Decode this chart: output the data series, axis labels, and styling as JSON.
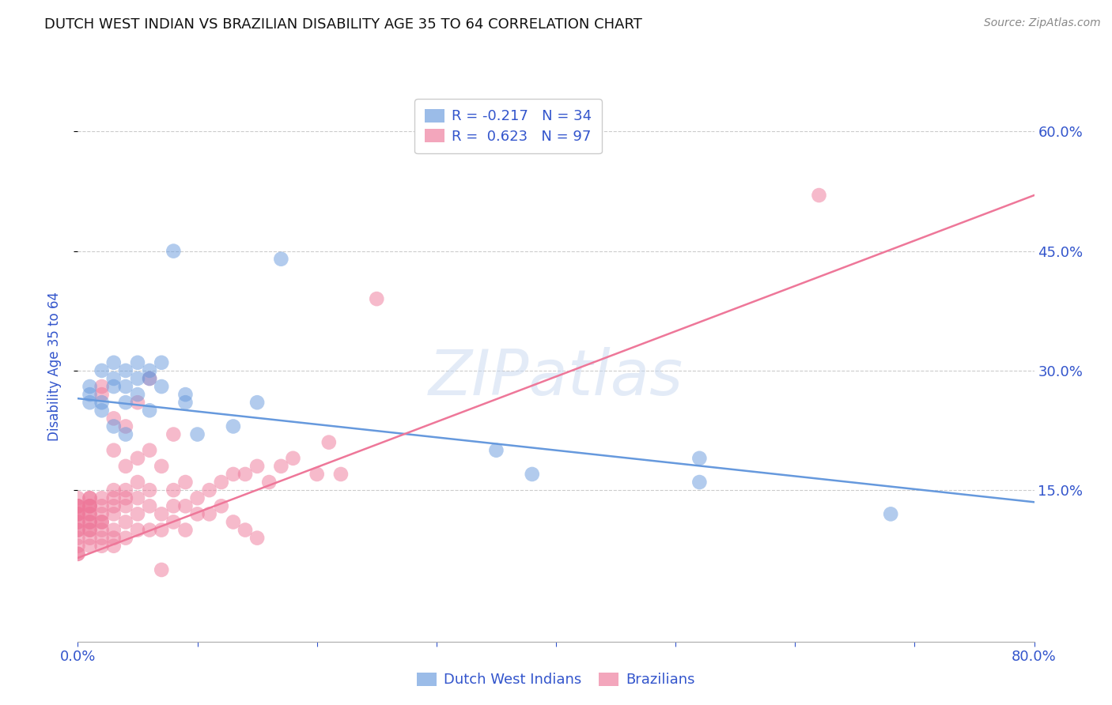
{
  "title": "DUTCH WEST INDIAN VS BRAZILIAN DISABILITY AGE 35 TO 64 CORRELATION CHART",
  "source": "Source: ZipAtlas.com",
  "ylabel": "Disability Age 35 to 64",
  "legend_labels": [
    "Dutch West Indians",
    "Brazilians"
  ],
  "xmin": 0.0,
  "xmax": 0.8,
  "ymin": -0.04,
  "ymax": 0.65,
  "yticks": [
    0.15,
    0.3,
    0.45,
    0.6
  ],
  "xtick_positions": [
    0.0,
    0.1,
    0.2,
    0.3,
    0.4,
    0.5,
    0.6,
    0.7,
    0.8
  ],
  "xtick_labels": [
    "0.0%",
    "",
    "",
    "",
    "",
    "",
    "",
    "",
    "80.0%"
  ],
  "blue_color": "#6699DD",
  "pink_color": "#EE7799",
  "watermark": "ZIPatlas",
  "blue_scatter": [
    [
      0.01,
      0.27
    ],
    [
      0.01,
      0.28
    ],
    [
      0.01,
      0.26
    ],
    [
      0.02,
      0.3
    ],
    [
      0.02,
      0.26
    ],
    [
      0.02,
      0.25
    ],
    [
      0.03,
      0.29
    ],
    [
      0.03,
      0.31
    ],
    [
      0.03,
      0.23
    ],
    [
      0.03,
      0.28
    ],
    [
      0.04,
      0.3
    ],
    [
      0.04,
      0.28
    ],
    [
      0.04,
      0.26
    ],
    [
      0.04,
      0.22
    ],
    [
      0.05,
      0.31
    ],
    [
      0.05,
      0.29
    ],
    [
      0.05,
      0.27
    ],
    [
      0.06,
      0.3
    ],
    [
      0.06,
      0.29
    ],
    [
      0.06,
      0.25
    ],
    [
      0.07,
      0.31
    ],
    [
      0.07,
      0.28
    ],
    [
      0.08,
      0.45
    ],
    [
      0.09,
      0.27
    ],
    [
      0.09,
      0.26
    ],
    [
      0.1,
      0.22
    ],
    [
      0.13,
      0.23
    ],
    [
      0.15,
      0.26
    ],
    [
      0.17,
      0.44
    ],
    [
      0.35,
      0.2
    ],
    [
      0.38,
      0.17
    ],
    [
      0.52,
      0.19
    ],
    [
      0.52,
      0.16
    ],
    [
      0.68,
      0.12
    ]
  ],
  "pink_scatter": [
    [
      0.0,
      0.07
    ],
    [
      0.0,
      0.07
    ],
    [
      0.0,
      0.08
    ],
    [
      0.0,
      0.09
    ],
    [
      0.0,
      0.1
    ],
    [
      0.0,
      0.1
    ],
    [
      0.0,
      0.11
    ],
    [
      0.0,
      0.11
    ],
    [
      0.0,
      0.12
    ],
    [
      0.0,
      0.12
    ],
    [
      0.0,
      0.12
    ],
    [
      0.0,
      0.13
    ],
    [
      0.0,
      0.13
    ],
    [
      0.0,
      0.13
    ],
    [
      0.0,
      0.14
    ],
    [
      0.01,
      0.08
    ],
    [
      0.01,
      0.09
    ],
    [
      0.01,
      0.1
    ],
    [
      0.01,
      0.1
    ],
    [
      0.01,
      0.11
    ],
    [
      0.01,
      0.11
    ],
    [
      0.01,
      0.12
    ],
    [
      0.01,
      0.12
    ],
    [
      0.01,
      0.13
    ],
    [
      0.01,
      0.13
    ],
    [
      0.01,
      0.13
    ],
    [
      0.01,
      0.14
    ],
    [
      0.01,
      0.14
    ],
    [
      0.02,
      0.08
    ],
    [
      0.02,
      0.09
    ],
    [
      0.02,
      0.1
    ],
    [
      0.02,
      0.11
    ],
    [
      0.02,
      0.11
    ],
    [
      0.02,
      0.12
    ],
    [
      0.02,
      0.13
    ],
    [
      0.02,
      0.14
    ],
    [
      0.02,
      0.27
    ],
    [
      0.02,
      0.28
    ],
    [
      0.03,
      0.08
    ],
    [
      0.03,
      0.09
    ],
    [
      0.03,
      0.1
    ],
    [
      0.03,
      0.12
    ],
    [
      0.03,
      0.13
    ],
    [
      0.03,
      0.14
    ],
    [
      0.03,
      0.15
    ],
    [
      0.03,
      0.2
    ],
    [
      0.03,
      0.24
    ],
    [
      0.04,
      0.09
    ],
    [
      0.04,
      0.11
    ],
    [
      0.04,
      0.13
    ],
    [
      0.04,
      0.14
    ],
    [
      0.04,
      0.15
    ],
    [
      0.04,
      0.18
    ],
    [
      0.04,
      0.23
    ],
    [
      0.05,
      0.1
    ],
    [
      0.05,
      0.12
    ],
    [
      0.05,
      0.14
    ],
    [
      0.05,
      0.16
    ],
    [
      0.05,
      0.19
    ],
    [
      0.05,
      0.26
    ],
    [
      0.06,
      0.1
    ],
    [
      0.06,
      0.13
    ],
    [
      0.06,
      0.15
    ],
    [
      0.06,
      0.2
    ],
    [
      0.06,
      0.29
    ],
    [
      0.07,
      0.05
    ],
    [
      0.07,
      0.1
    ],
    [
      0.07,
      0.12
    ],
    [
      0.07,
      0.18
    ],
    [
      0.08,
      0.11
    ],
    [
      0.08,
      0.13
    ],
    [
      0.08,
      0.15
    ],
    [
      0.08,
      0.22
    ],
    [
      0.09,
      0.1
    ],
    [
      0.09,
      0.13
    ],
    [
      0.09,
      0.16
    ],
    [
      0.1,
      0.12
    ],
    [
      0.1,
      0.14
    ],
    [
      0.11,
      0.12
    ],
    [
      0.11,
      0.15
    ],
    [
      0.12,
      0.13
    ],
    [
      0.12,
      0.16
    ],
    [
      0.13,
      0.11
    ],
    [
      0.13,
      0.17
    ],
    [
      0.14,
      0.1
    ],
    [
      0.14,
      0.17
    ],
    [
      0.15,
      0.09
    ],
    [
      0.15,
      0.18
    ],
    [
      0.16,
      0.16
    ],
    [
      0.17,
      0.18
    ],
    [
      0.18,
      0.19
    ],
    [
      0.2,
      0.17
    ],
    [
      0.21,
      0.21
    ],
    [
      0.22,
      0.17
    ],
    [
      0.25,
      0.39
    ],
    [
      0.62,
      0.52
    ]
  ],
  "blue_line_x": [
    0.0,
    0.8
  ],
  "blue_line_y": [
    0.265,
    0.135
  ],
  "pink_line_x": [
    0.0,
    0.8
  ],
  "pink_line_y": [
    0.065,
    0.52
  ],
  "bg_color": "#ffffff",
  "grid_color": "#cccccc",
  "title_color": "#111111",
  "tick_label_color": "#3355cc"
}
